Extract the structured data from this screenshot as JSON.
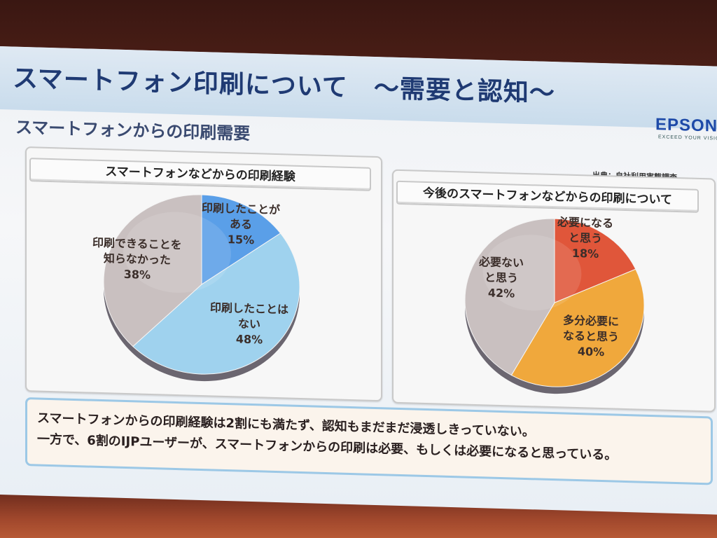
{
  "slide": {
    "title": "スマートフォン印刷について　～需要と認知～",
    "subtitle": "スマートフォンからの印刷需要",
    "brand": "EPSON",
    "brand_tagline": "EXCEED YOUR VISION",
    "source": "出典：自社利用実態調査",
    "summary": [
      "スマートフォンからの印刷経験は2割にも満たず、認知もまだまだ浸透しきっていない。",
      "一方で、6割のIJPユーザーが、スマートフォンからの印刷は必要、もしくは必要になると思っている。"
    ]
  },
  "chart_data": [
    {
      "type": "pie",
      "title": "スマートフォンなどからの印刷経験",
      "slices": [
        {
          "label": "印刷したことがある",
          "value": 15,
          "color": "#5a9fe8"
        },
        {
          "label": "印刷したことはない",
          "value": 48,
          "color": "#9fd2ee"
        },
        {
          "label": "印刷できることを知らなかった",
          "value": 38,
          "color": "#c9c0c0"
        }
      ],
      "display": [
        {
          "lines": [
            "印刷したことが",
            "ある",
            "15%"
          ]
        },
        {
          "lines": [
            "印刷したことは",
            "ない",
            "48%"
          ]
        },
        {
          "lines": [
            "印刷できることを",
            "知らなかった",
            "38%"
          ]
        }
      ]
    },
    {
      "type": "pie",
      "title": "今後のスマートフォンなどからの印刷について",
      "slices": [
        {
          "label": "必要になると思う",
          "value": 18,
          "color": "#e0563a"
        },
        {
          "label": "多分必要になると思う",
          "value": 40,
          "color": "#f0a83c"
        },
        {
          "label": "必要ないと思う",
          "value": 42,
          "color": "#c9c0c0"
        }
      ],
      "display": [
        {
          "lines": [
            "必要になる",
            "と思う",
            "18%"
          ]
        },
        {
          "lines": [
            "多分必要に",
            "なると思う",
            "40%"
          ]
        },
        {
          "lines": [
            "必要ない",
            "と思う",
            "42%"
          ]
        }
      ]
    }
  ]
}
